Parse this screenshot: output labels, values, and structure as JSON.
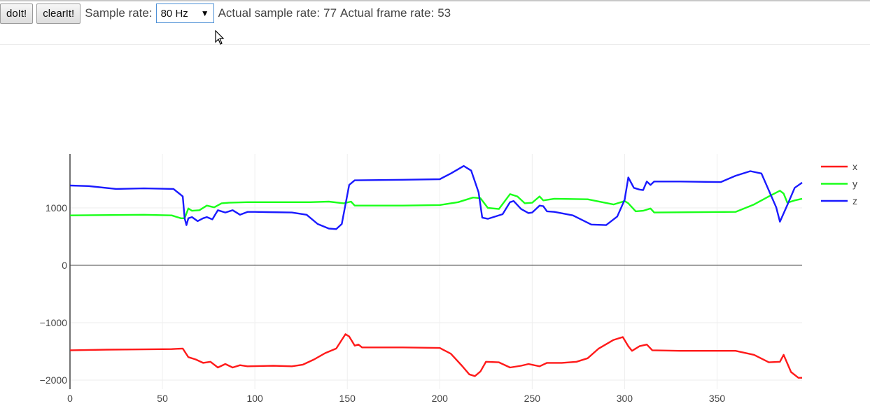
{
  "toolbar": {
    "doit_label": "doIt!",
    "clearit_label": "clearIt!",
    "sample_rate_label": "Sample rate:",
    "sample_rate_selected": "80 Hz",
    "actual_sample_rate_label": "Actual sample rate:",
    "actual_sample_rate_value": "77",
    "actual_frame_rate_label": "Actual frame rate:",
    "actual_frame_rate_value": "53"
  },
  "colors": {
    "x": "#ff1a1a",
    "y": "#1aff1a",
    "z": "#1a1aff"
  },
  "chart_data": {
    "type": "line",
    "xlim": [
      0,
      396
    ],
    "ylim": [
      -2050,
      1950
    ],
    "x_ticks": [
      0,
      50,
      100,
      150,
      200,
      250,
      300,
      350
    ],
    "y_ticks": [
      -2000,
      -1000,
      0,
      1000
    ],
    "y_tick_labels": [
      "−2000",
      "−1000",
      "0",
      "1000"
    ],
    "grid": true,
    "legend_position": "top-right",
    "series": [
      {
        "name": "x",
        "color": "#ff1a1a",
        "points": [
          [
            0,
            -1480
          ],
          [
            20,
            -1470
          ],
          [
            40,
            -1465
          ],
          [
            55,
            -1460
          ],
          [
            61,
            -1450
          ],
          [
            64,
            -1600
          ],
          [
            68,
            -1640
          ],
          [
            72,
            -1700
          ],
          [
            76,
            -1680
          ],
          [
            80,
            -1780
          ],
          [
            84,
            -1720
          ],
          [
            88,
            -1780
          ],
          [
            92,
            -1740
          ],
          [
            96,
            -1760
          ],
          [
            110,
            -1750
          ],
          [
            120,
            -1760
          ],
          [
            126,
            -1730
          ],
          [
            132,
            -1640
          ],
          [
            138,
            -1530
          ],
          [
            144,
            -1450
          ],
          [
            149,
            -1200
          ],
          [
            151,
            -1240
          ],
          [
            154,
            -1400
          ],
          [
            156,
            -1380
          ],
          [
            158,
            -1430
          ],
          [
            180,
            -1430
          ],
          [
            200,
            -1440
          ],
          [
            206,
            -1540
          ],
          [
            212,
            -1750
          ],
          [
            216,
            -1900
          ],
          [
            219,
            -1930
          ],
          [
            222,
            -1850
          ],
          [
            225,
            -1680
          ],
          [
            232,
            -1690
          ],
          [
            238,
            -1780
          ],
          [
            244,
            -1750
          ],
          [
            248,
            -1720
          ],
          [
            254,
            -1760
          ],
          [
            258,
            -1700
          ],
          [
            266,
            -1700
          ],
          [
            274,
            -1680
          ],
          [
            280,
            -1620
          ],
          [
            286,
            -1450
          ],
          [
            294,
            -1300
          ],
          [
            299,
            -1250
          ],
          [
            302,
            -1410
          ],
          [
            304,
            -1490
          ],
          [
            308,
            -1410
          ],
          [
            312,
            -1380
          ],
          [
            315,
            -1480
          ],
          [
            330,
            -1490
          ],
          [
            360,
            -1490
          ],
          [
            370,
            -1560
          ],
          [
            378,
            -1690
          ],
          [
            384,
            -1680
          ],
          [
            386,
            -1560
          ],
          [
            390,
            -1860
          ],
          [
            394,
            -1960
          ],
          [
            396,
            -1960
          ]
        ]
      },
      {
        "name": "y",
        "color": "#1aff1a",
        "points": [
          [
            0,
            870
          ],
          [
            40,
            880
          ],
          [
            55,
            870
          ],
          [
            60,
            820
          ],
          [
            62,
            820
          ],
          [
            64,
            990
          ],
          [
            66,
            950
          ],
          [
            70,
            960
          ],
          [
            74,
            1040
          ],
          [
            78,
            1010
          ],
          [
            82,
            1080
          ],
          [
            86,
            1090
          ],
          [
            96,
            1100
          ],
          [
            120,
            1100
          ],
          [
            130,
            1100
          ],
          [
            140,
            1110
          ],
          [
            148,
            1080
          ],
          [
            152,
            1110
          ],
          [
            154,
            1040
          ],
          [
            180,
            1040
          ],
          [
            200,
            1050
          ],
          [
            210,
            1100
          ],
          [
            218,
            1180
          ],
          [
            222,
            1170
          ],
          [
            226,
            1000
          ],
          [
            232,
            980
          ],
          [
            238,
            1240
          ],
          [
            242,
            1200
          ],
          [
            246,
            1080
          ],
          [
            250,
            1090
          ],
          [
            254,
            1200
          ],
          [
            256,
            1130
          ],
          [
            262,
            1160
          ],
          [
            280,
            1150
          ],
          [
            294,
            1060
          ],
          [
            300,
            1120
          ],
          [
            302,
            1080
          ],
          [
            306,
            940
          ],
          [
            310,
            950
          ],
          [
            314,
            990
          ],
          [
            316,
            920
          ],
          [
            360,
            930
          ],
          [
            370,
            1060
          ],
          [
            378,
            1200
          ],
          [
            384,
            1300
          ],
          [
            386,
            1250
          ],
          [
            388,
            1090
          ],
          [
            392,
            1130
          ],
          [
            396,
            1160
          ]
        ]
      },
      {
        "name": "z",
        "color": "#1a1aff",
        "points": [
          [
            0,
            1390
          ],
          [
            10,
            1380
          ],
          [
            25,
            1330
          ],
          [
            40,
            1340
          ],
          [
            56,
            1330
          ],
          [
            61,
            1200
          ],
          [
            62,
            820
          ],
          [
            63,
            700
          ],
          [
            64,
            820
          ],
          [
            66,
            840
          ],
          [
            69,
            770
          ],
          [
            72,
            820
          ],
          [
            74,
            840
          ],
          [
            77,
            800
          ],
          [
            80,
            960
          ],
          [
            84,
            920
          ],
          [
            88,
            960
          ],
          [
            92,
            880
          ],
          [
            96,
            930
          ],
          [
            100,
            930
          ],
          [
            120,
            920
          ],
          [
            128,
            880
          ],
          [
            134,
            720
          ],
          [
            140,
            640
          ],
          [
            144,
            630
          ],
          [
            147,
            720
          ],
          [
            151,
            1400
          ],
          [
            154,
            1480
          ],
          [
            180,
            1490
          ],
          [
            200,
            1500
          ],
          [
            206,
            1600
          ],
          [
            213,
            1730
          ],
          [
            217,
            1650
          ],
          [
            221,
            1270
          ],
          [
            223,
            830
          ],
          [
            226,
            810
          ],
          [
            234,
            890
          ],
          [
            238,
            1100
          ],
          [
            240,
            1120
          ],
          [
            244,
            980
          ],
          [
            248,
            910
          ],
          [
            250,
            920
          ],
          [
            254,
            1040
          ],
          [
            256,
            1030
          ],
          [
            258,
            940
          ],
          [
            262,
            930
          ],
          [
            272,
            870
          ],
          [
            282,
            710
          ],
          [
            290,
            700
          ],
          [
            296,
            850
          ],
          [
            300,
            1140
          ],
          [
            302,
            1530
          ],
          [
            305,
            1350
          ],
          [
            308,
            1320
          ],
          [
            310,
            1310
          ],
          [
            312,
            1460
          ],
          [
            314,
            1400
          ],
          [
            316,
            1460
          ],
          [
            330,
            1460
          ],
          [
            352,
            1450
          ],
          [
            360,
            1560
          ],
          [
            368,
            1640
          ],
          [
            374,
            1600
          ],
          [
            382,
            1010
          ],
          [
            384,
            760
          ],
          [
            388,
            1050
          ],
          [
            392,
            1350
          ],
          [
            396,
            1440
          ]
        ]
      }
    ]
  }
}
